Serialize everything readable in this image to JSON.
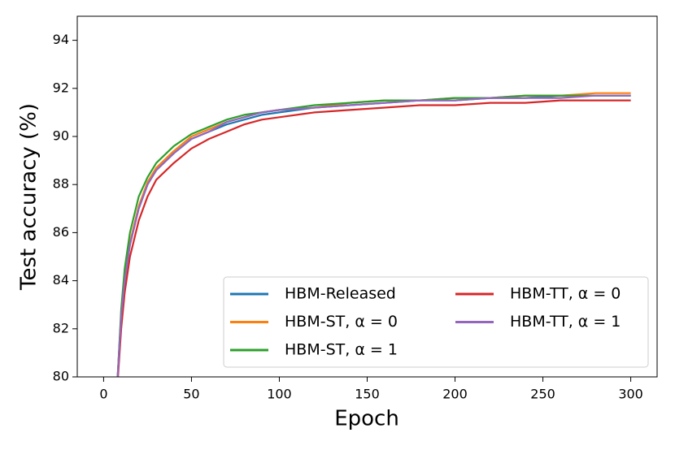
{
  "chart_data": {
    "type": "line",
    "xlabel": "Epoch",
    "ylabel": "Test accuracy (%)",
    "x": [
      8,
      10,
      12,
      15,
      20,
      25,
      30,
      40,
      50,
      60,
      70,
      80,
      90,
      100,
      120,
      140,
      160,
      180,
      200,
      220,
      240,
      260,
      280,
      300
    ],
    "series": [
      {
        "name": "HBM-Released",
        "color": "#1f77b4",
        "values": [
          80,
          82.5,
          84,
          85.5,
          87,
          88,
          88.6,
          89.3,
          89.9,
          90.2,
          90.5,
          90.7,
          90.9,
          91.0,
          91.2,
          91.3,
          91.4,
          91.5,
          91.5,
          91.6,
          91.6,
          91.7,
          91.7,
          91.7
        ]
      },
      {
        "name": "HBM-ST, α = 0",
        "color": "#ff7f0e",
        "values": [
          80,
          82.6,
          84.2,
          85.6,
          87.1,
          88.1,
          88.7,
          89.4,
          90.0,
          90.3,
          90.6,
          90.8,
          91.0,
          91.1,
          91.2,
          91.4,
          91.5,
          91.5,
          91.6,
          91.6,
          91.7,
          91.7,
          91.8,
          91.8
        ]
      },
      {
        "name": "HBM-ST, α = 1",
        "color": "#2ca02c",
        "values": [
          80,
          82.8,
          84.5,
          86,
          87.5,
          88.3,
          88.9,
          89.6,
          90.1,
          90.4,
          90.7,
          90.9,
          91.0,
          91.1,
          91.3,
          91.4,
          91.5,
          91.5,
          91.6,
          91.6,
          91.7,
          91.7,
          91.7,
          91.7
        ]
      },
      {
        "name": "HBM-TT, α = 0",
        "color": "#d62728",
        "values": [
          79.8,
          82,
          83.5,
          85,
          86.5,
          87.5,
          88.2,
          88.9,
          89.5,
          89.9,
          90.2,
          90.5,
          90.7,
          90.8,
          91.0,
          91.1,
          91.2,
          91.3,
          91.3,
          91.4,
          91.4,
          91.5,
          91.5,
          91.5
        ]
      },
      {
        "name": "HBM-TT, α = 1",
        "color": "#9467bd",
        "values": [
          80,
          82.5,
          84,
          85.5,
          87,
          88,
          88.6,
          89.3,
          89.9,
          90.2,
          90.6,
          90.8,
          91.0,
          91.1,
          91.2,
          91.3,
          91.4,
          91.5,
          91.5,
          91.6,
          91.6,
          91.6,
          91.7,
          91.7
        ]
      }
    ],
    "xlim": [
      -15,
      315
    ],
    "ylim": [
      80,
      95
    ],
    "xticks": [
      0,
      50,
      100,
      150,
      200,
      250,
      300
    ],
    "yticks": [
      80,
      82,
      84,
      86,
      88,
      90,
      92,
      94
    ],
    "grid": false,
    "legend": "lower right"
  }
}
